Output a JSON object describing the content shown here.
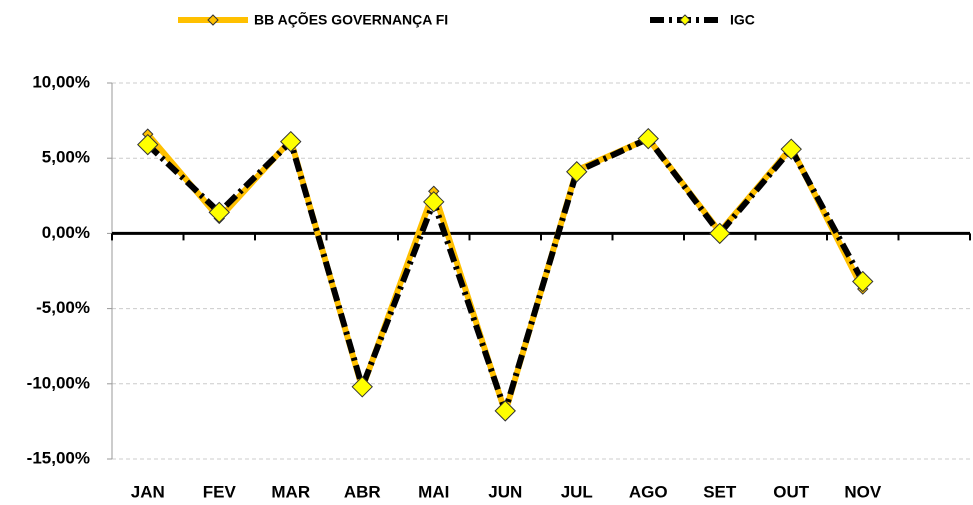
{
  "chart_data": {
    "type": "line",
    "categories": [
      "JAN",
      "FEV",
      "MAR",
      "ABR",
      "MAI",
      "JUN",
      "JUL",
      "AGO",
      "SET",
      "OUT",
      "NOV",
      null
    ],
    "series": [
      {
        "name": "BB AÇÕES GOVERNANÇA FI",
        "color": "#FFC000",
        "values": [
          6.6,
          1.0,
          6.2,
          -10.3,
          2.8,
          -11.9,
          4.2,
          6.3,
          0.1,
          5.7,
          -3.7,
          null
        ]
      },
      {
        "name": "IGC",
        "color": "#000000",
        "values": [
          5.9,
          1.4,
          6.1,
          -10.2,
          2.1,
          -11.8,
          4.1,
          6.3,
          0.0,
          5.6,
          -3.2,
          null
        ]
      }
    ],
    "ylim": [
      -15,
      10
    ],
    "yticks": [
      {
        "value": -15,
        "label": "-15,00%"
      },
      {
        "value": -10,
        "label": "-10,00%"
      },
      {
        "value": -5,
        "label": "-5,00%"
      },
      {
        "value": 0,
        "label": "0,00%"
      },
      {
        "value": 5,
        "label": "5,00%"
      },
      {
        "value": 10,
        "label": "10,00%"
      }
    ],
    "grid": true,
    "legend": "top",
    "marker_color": "#FFFF00"
  }
}
